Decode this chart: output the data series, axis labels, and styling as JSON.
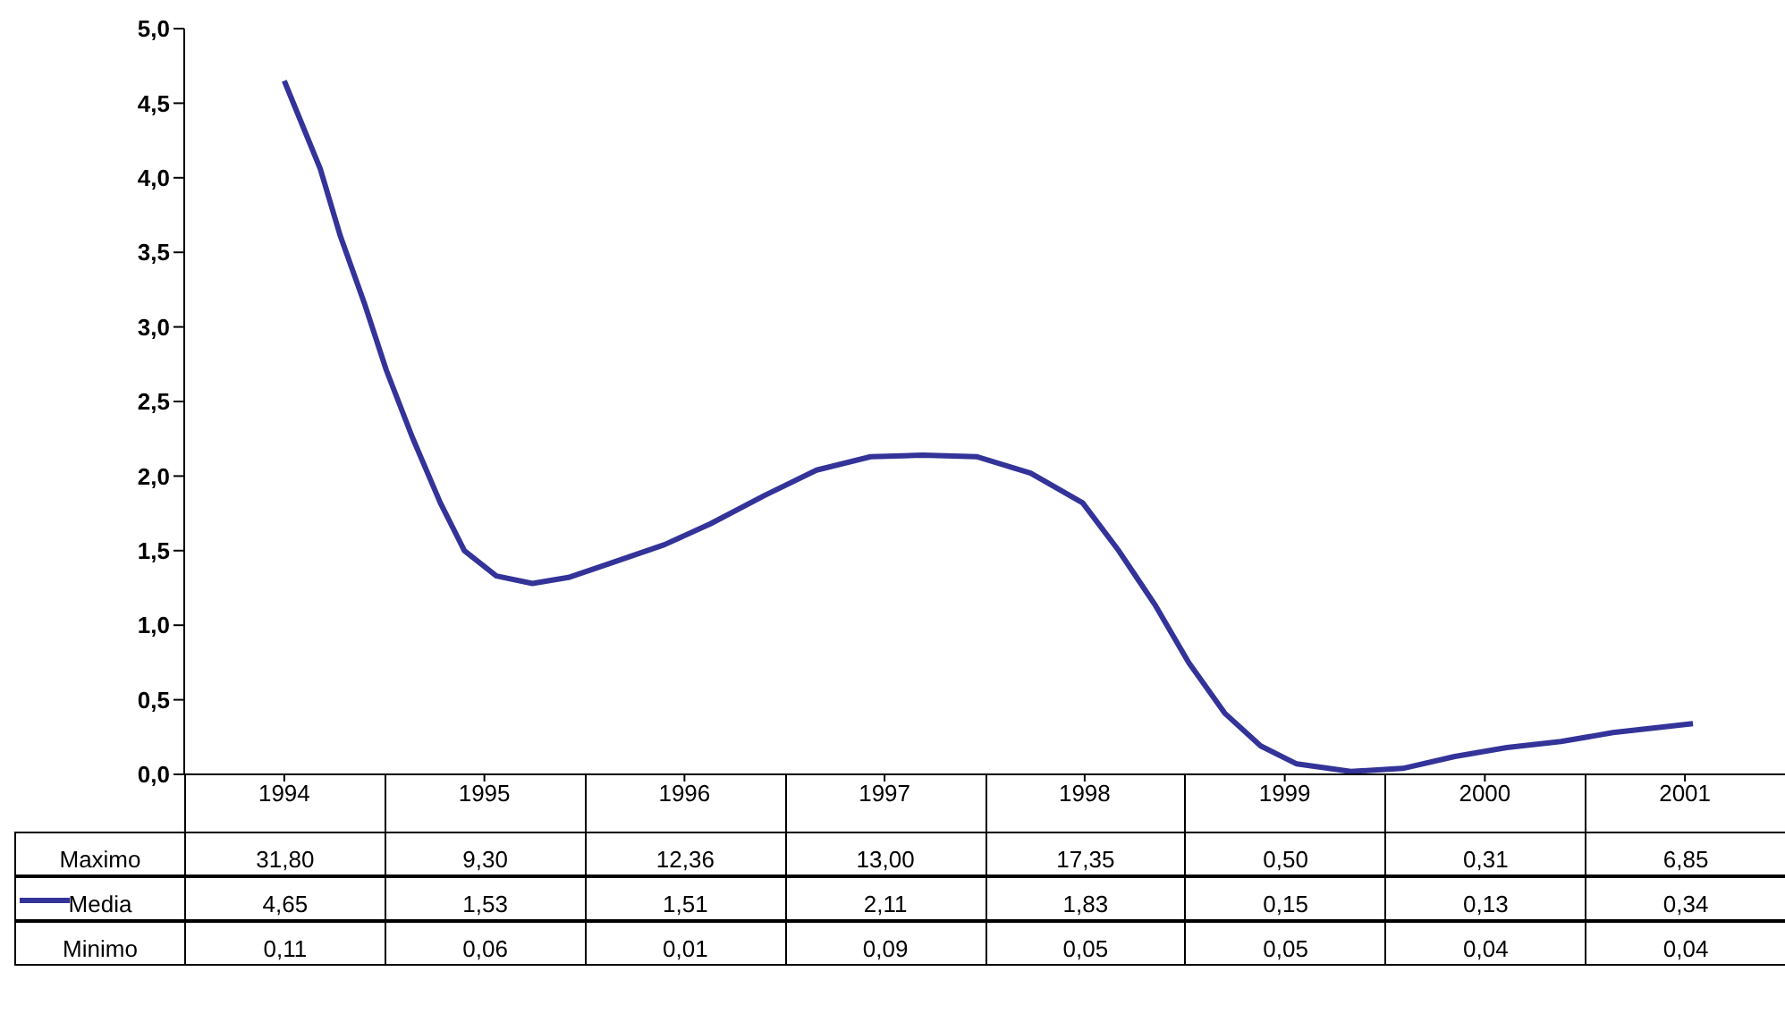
{
  "chart_data": {
    "type": "line",
    "xlim": [
      1993.5,
      2001.5
    ],
    "xticks": [
      1994,
      1995,
      1996,
      1997,
      1998,
      1999,
      2000,
      2001
    ],
    "ylim": [
      0,
      5
    ],
    "yticks": [
      {
        "value": 0,
        "label": "0,0"
      },
      {
        "value": 0.5,
        "label": "0,5"
      },
      {
        "value": 1,
        "label": "1,0"
      },
      {
        "value": 1.5,
        "label": "1,5"
      },
      {
        "value": 2,
        "label": "2,0"
      },
      {
        "value": 2.5,
        "label": "2,5"
      },
      {
        "value": 3,
        "label": "3,0"
      },
      {
        "value": 3.5,
        "label": "3,5"
      },
      {
        "value": 4,
        "label": "4,0"
      },
      {
        "value": 4.5,
        "label": "4,5"
      },
      {
        "value": 5,
        "label": "5,0"
      }
    ],
    "grid": false,
    "legend": "bottom left",
    "marker": "none",
    "line_style": "solid",
    "series": [
      {
        "name": "Media",
        "color": "#333399",
        "x": [
          1994.0,
          1994.07,
          1994.18,
          1994.28,
          1994.4,
          1994.51,
          1994.64,
          1994.78,
          1994.9,
          1995.06,
          1995.24,
          1995.42,
          1995.64,
          1995.9,
          1996.13,
          1996.4,
          1996.66,
          1996.93,
          1997.19,
          1997.46,
          1997.73,
          1997.99,
          1998.17,
          1998.35,
          1998.52,
          1998.7,
          1998.88,
          1999.06,
          1999.33,
          1999.59,
          1999.85,
          2000.11,
          2000.38,
          2000.64,
          2001.04
        ],
        "values": [
          4.65,
          4.42,
          4.06,
          3.61,
          3.16,
          2.71,
          2.26,
          1.82,
          1.5,
          1.33,
          1.28,
          1.32,
          1.42,
          1.54,
          1.68,
          1.87,
          2.04,
          2.13,
          2.14,
          2.13,
          2.02,
          1.82,
          1.5,
          1.14,
          0.75,
          0.41,
          0.19,
          0.07,
          0.02,
          0.04,
          0.12,
          0.18,
          0.22,
          0.28,
          0.34
        ]
      }
    ],
    "annotations": [
      "Maximo",
      "31,80",
      "9,30",
      "12,36",
      "13,00",
      "17,35",
      "0,50",
      "0,31",
      "6,85",
      "4,65",
      "1,53",
      "1,51",
      "2,11",
      "1,83",
      "0,15",
      "0,13",
      "0,34",
      "Minimo",
      "0,11",
      "0,06",
      "0,01",
      "0,09",
      "0,05",
      "0,05",
      "0,04",
      "0,04"
    ]
  }
}
